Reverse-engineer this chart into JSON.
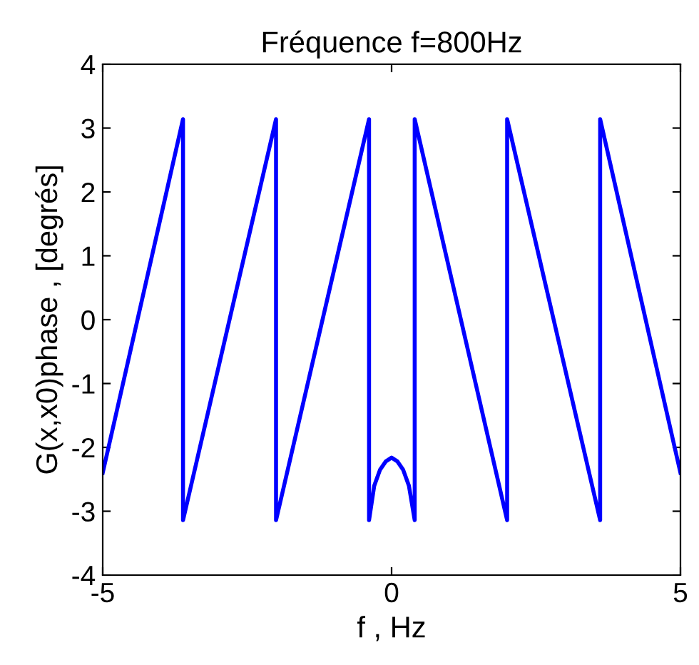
{
  "chart_data": {
    "type": "line",
    "title": "Fréquence f=800Hz",
    "xlabel": "f , Hz",
    "ylabel": "G(x,x0)phase , [degrés]",
    "series": [
      {
        "color": "#0000ff",
        "x": [
          -5,
          -3.61,
          -3.61,
          -2.0,
          -2.0,
          -0.39,
          -0.39,
          -0.3,
          -0.2,
          -0.1,
          0,
          0.1,
          0.2,
          0.3,
          0.4,
          0.4,
          2.0,
          2.0,
          3.61,
          3.61,
          5
        ],
        "values": [
          -2.4,
          3.14,
          -3.14,
          3.14,
          -3.14,
          3.14,
          -3.14,
          -2.6,
          -2.35,
          -2.22,
          -2.16,
          -2.22,
          -2.35,
          -2.6,
          -3.14,
          3.14,
          -3.14,
          3.14,
          -3.14,
          3.14,
          -2.4
        ]
      }
    ],
    "xlim": [
      -5,
      5
    ],
    "xticks": [
      -5,
      0,
      5
    ],
    "ylim": [
      -4,
      4
    ],
    "yticks": [
      -4,
      -3,
      -2,
      -1,
      0,
      1,
      2,
      3,
      4
    ],
    "grid": false,
    "marker": "none",
    "line_style": "solid"
  }
}
